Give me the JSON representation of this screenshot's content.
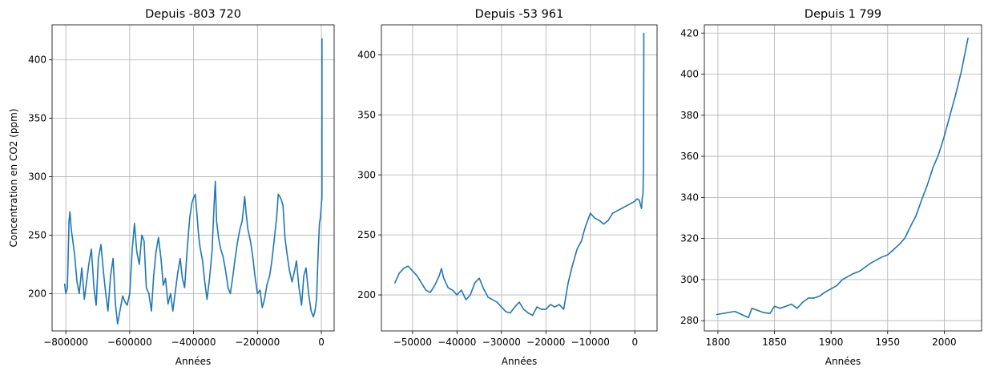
{
  "colors": {
    "series": "#1f77b4",
    "grid": "#b0b0b0"
  },
  "chart_data": [
    {
      "type": "line",
      "title": "Depuis -803 720",
      "xlabel": "Années",
      "ylabel": "Concentration en CO2 (ppm)",
      "grid": true,
      "xlim": [
        -843000,
        40000
      ],
      "ylim": [
        168,
        430
      ],
      "xticks": [
        -800000,
        -600000,
        -400000,
        -200000,
        0
      ],
      "xtick_labels": [
        "−800000",
        "−600000",
        "−400000",
        "−200000",
        "0"
      ],
      "yticks": [
        200,
        250,
        300,
        350,
        400
      ],
      "ytick_labels": [
        "200",
        "250",
        "300",
        "350",
        "400"
      ],
      "series": [
        {
          "x": [
            -803720,
            -800000,
            -795000,
            -790000,
            -787000,
            -783000,
            -778000,
            -772000,
            -765000,
            -758000,
            -750000,
            -742000,
            -735000,
            -728000,
            -720000,
            -712000,
            -705000,
            -698000,
            -690000,
            -682000,
            -675000,
            -668000,
            -660000,
            -652000,
            -645000,
            -638000,
            -630000,
            -622000,
            -615000,
            -608000,
            -600000,
            -592000,
            -585000,
            -578000,
            -570000,
            -562000,
            -555000,
            -548000,
            -540000,
            -532000,
            -525000,
            -518000,
            -510000,
            -502000,
            -495000,
            -488000,
            -480000,
            -472000,
            -465000,
            -458000,
            -450000,
            -442000,
            -435000,
            -428000,
            -420000,
            -412000,
            -405000,
            -400000,
            -395000,
            -390000,
            -385000,
            -380000,
            -372000,
            -365000,
            -358000,
            -350000,
            -342000,
            -336000,
            -332000,
            -328000,
            -322000,
            -315000,
            -308000,
            -300000,
            -292000,
            -285000,
            -278000,
            -270000,
            -262000,
            -255000,
            -248000,
            -243000,
            -240000,
            -236000,
            -230000,
            -222000,
            -215000,
            -208000,
            -200000,
            -192000,
            -185000,
            -178000,
            -170000,
            -162000,
            -155000,
            -148000,
            -140000,
            -135000,
            -130000,
            -125000,
            -120000,
            -114000,
            -108000,
            -100000,
            -92000,
            -85000,
            -78000,
            -70000,
            -62000,
            -55000,
            -48000,
            -40000,
            -32000,
            -25000,
            -20000,
            -15000,
            -10000,
            -6000,
            -3000,
            -1000,
            0,
            500,
            1000,
            1500,
            1800,
            1900,
            1950,
            1980,
            2000,
            2010,
            2021
          ],
          "y": [
            208,
            200,
            205,
            262,
            270,
            255,
            245,
            232,
            210,
            200,
            222,
            195,
            210,
            225,
            238,
            205,
            190,
            230,
            242,
            218,
            200,
            185,
            215,
            230,
            192,
            174,
            186,
            198,
            193,
            190,
            200,
            238,
            260,
            236,
            225,
            250,
            245,
            205,
            200,
            185,
            215,
            235,
            248,
            230,
            207,
            213,
            191,
            200,
            185,
            200,
            217,
            230,
            213,
            205,
            238,
            265,
            278,
            282,
            285,
            270,
            252,
            240,
            228,
            210,
            195,
            213,
            237,
            275,
            296,
            262,
            248,
            238,
            232,
            220,
            205,
            200,
            213,
            230,
            245,
            255,
            262,
            275,
            283,
            270,
            255,
            245,
            232,
            215,
            200,
            203,
            188,
            195,
            208,
            215,
            228,
            245,
            265,
            285,
            283,
            280,
            275,
            248,
            235,
            220,
            210,
            218,
            228,
            205,
            190,
            215,
            222,
            200,
            185,
            180,
            185,
            195,
            235,
            260,
            265,
            272,
            275,
            278,
            280,
            280,
            283,
            297,
            310,
            340,
            370,
            390,
            418
          ]
        }
      ]
    },
    {
      "type": "line",
      "title": "Depuis -53 961",
      "xlabel": "Années",
      "ylabel": "",
      "grid": true,
      "xlim": [
        -57000,
        5000
      ],
      "ylim": [
        170,
        425
      ],
      "xticks": [
        -50000,
        -40000,
        -30000,
        -20000,
        -10000,
        0
      ],
      "xtick_labels": [
        "−50000",
        "−40000",
        "−30000",
        "−20000",
        "−10000",
        "0"
      ],
      "yticks": [
        200,
        250,
        300,
        350,
        400
      ],
      "ytick_labels": [
        "200",
        "250",
        "300",
        "350",
        "400"
      ],
      "series": [
        {
          "x": [
            -53961,
            -53000,
            -52000,
            -51000,
            -50000,
            -49000,
            -48000,
            -47000,
            -46000,
            -45000,
            -44000,
            -43500,
            -43000,
            -42000,
            -41000,
            -40000,
            -39000,
            -38000,
            -37000,
            -36000,
            -35000,
            -34000,
            -33000,
            -32000,
            -31000,
            -30000,
            -29000,
            -28000,
            -27000,
            -26000,
            -25000,
            -24000,
            -23000,
            -22000,
            -21000,
            -20000,
            -19000,
            -18000,
            -17000,
            -16000,
            -15000,
            -14000,
            -13000,
            -12000,
            -11500,
            -11000,
            -10500,
            -10000,
            -9000,
            -8000,
            -7000,
            -6000,
            -5000,
            -4000,
            -3000,
            -2000,
            -1000,
            0,
            500,
            1000,
            1200,
            1500,
            1700,
            1800,
            1850,
            1900,
            1950,
            1980,
            2000,
            2010,
            2021
          ],
          "y": [
            210,
            218,
            222,
            224,
            220,
            216,
            210,
            204,
            202,
            208,
            216,
            222,
            214,
            206,
            204,
            200,
            204,
            196,
            200,
            210,
            214,
            205,
            198,
            196,
            194,
            190,
            186,
            185,
            190,
            194,
            188,
            185,
            183,
            190,
            188,
            188,
            192,
            190,
            192,
            188,
            210,
            225,
            238,
            245,
            252,
            258,
            263,
            268,
            264,
            262,
            259,
            262,
            268,
            270,
            272,
            274,
            276,
            278,
            280,
            279,
            276,
            272,
            282,
            283,
            286,
            297,
            310,
            338,
            369,
            389,
            418
          ]
        }
      ]
    },
    {
      "type": "line",
      "title": "Depuis 1 799",
      "xlabel": "Années",
      "ylabel": "",
      "grid": true,
      "xlim": [
        1788,
        2033
      ],
      "ylim": [
        275,
        424
      ],
      "xticks": [
        1800,
        1850,
        1900,
        1950,
        2000
      ],
      "xtick_labels": [
        "1800",
        "1850",
        "1900",
        "1950",
        "2000"
      ],
      "yticks": [
        280,
        300,
        320,
        340,
        360,
        380,
        400,
        420
      ],
      "ytick_labels": [
        "280",
        "300",
        "320",
        "340",
        "360",
        "380",
        "400",
        "420"
      ],
      "series": [
        {
          "x": [
            1799,
            1815,
            1827,
            1830,
            1840,
            1846,
            1850,
            1855,
            1860,
            1865,
            1870,
            1875,
            1880,
            1885,
            1890,
            1895,
            1900,
            1905,
            1910,
            1915,
            1920,
            1925,
            1930,
            1935,
            1940,
            1945,
            1950,
            1955,
            1960,
            1965,
            1970,
            1975,
            1980,
            1985,
            1990,
            1995,
            2000,
            2005,
            2010,
            2015,
            2021
          ],
          "y": [
            283,
            284.5,
            281.5,
            286,
            284,
            283.5,
            287,
            286,
            287,
            288,
            286,
            289,
            291,
            291,
            292,
            294,
            295.5,
            297,
            300,
            301.5,
            303,
            304,
            306,
            308,
            309.5,
            311,
            312,
            314.5,
            317,
            320,
            325.7,
            331,
            338.7,
            346,
            354.4,
            360.9,
            369.7,
            379.8,
            389.9,
            401,
            417.5
          ]
        }
      ]
    }
  ]
}
